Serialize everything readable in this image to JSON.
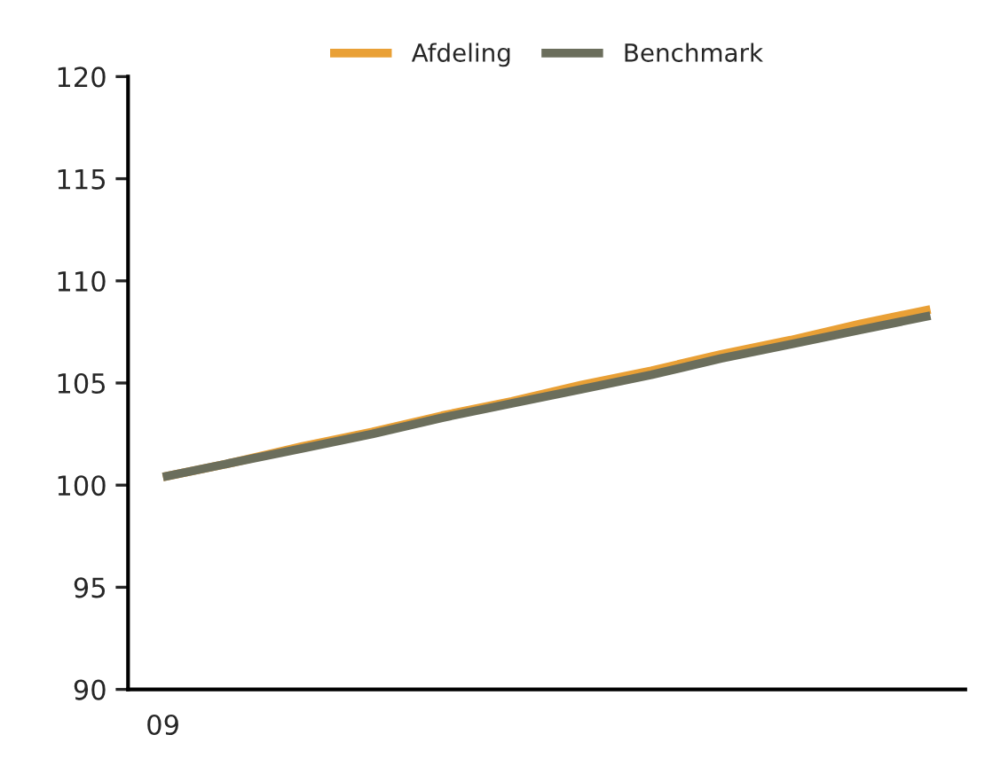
{
  "chart_data": {
    "type": "line",
    "categories": [
      "09",
      null,
      null,
      null,
      null,
      null,
      null,
      null,
      null,
      null,
      null,
      null
    ],
    "series": [
      {
        "name": "Afdeling",
        "color": "#e9a036",
        "values": [
          100.4,
          101.1,
          101.9,
          102.6,
          103.4,
          104.1,
          104.9,
          105.6,
          106.4,
          107.1,
          107.9,
          108.6
        ]
      },
      {
        "name": "Benchmark",
        "color": "#6b6e5c",
        "values": [
          100.4,
          101.1,
          101.8,
          102.5,
          103.3,
          104.0,
          104.7,
          105.4,
          106.2,
          106.9,
          107.6,
          108.3
        ]
      }
    ],
    "ylim": [
      90,
      120
    ],
    "yticks": [
      90,
      95,
      100,
      105,
      110,
      115,
      120
    ],
    "grid": false,
    "legend": "top",
    "line_style": "solid",
    "marker": "none"
  }
}
